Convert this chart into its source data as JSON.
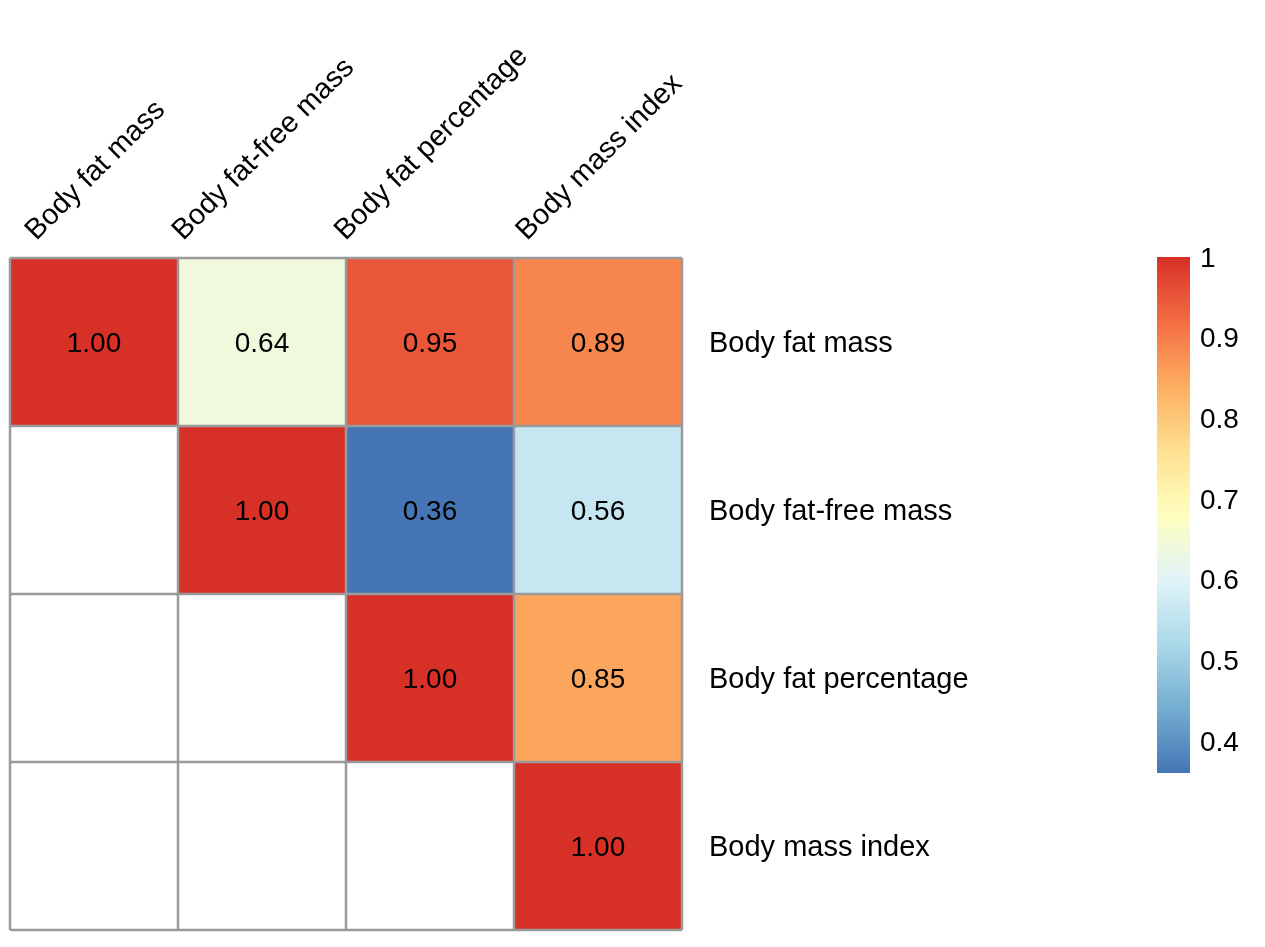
{
  "chart_data": {
    "type": "heatmap",
    "categories": [
      "Body fat mass",
      "Body fat-free mass",
      "Body fat percentage",
      "Body mass index"
    ],
    "y_categories": [
      "Body fat mass",
      "Body fat-free mass",
      "Body fat percentage",
      "Body mass index"
    ],
    "cells": [
      [
        1.0,
        0.64,
        0.95,
        0.89
      ],
      [
        null,
        1.0,
        0.36,
        0.56
      ],
      [
        null,
        null,
        1.0,
        0.85
      ],
      [
        null,
        null,
        null,
        1.0
      ]
    ],
    "cell_labels": [
      [
        "1.00",
        "0.64",
        "0.95",
        "0.89"
      ],
      [
        null,
        "1.00",
        "0.36",
        "0.56"
      ],
      [
        null,
        null,
        "1.00",
        "0.85"
      ],
      [
        null,
        null,
        null,
        "1.00"
      ]
    ],
    "clim": [
      0.36,
      1
    ],
    "cticks": [
      0.4,
      0.5,
      0.6,
      0.7,
      0.8,
      0.9,
      1
    ],
    "grid": true
  }
}
